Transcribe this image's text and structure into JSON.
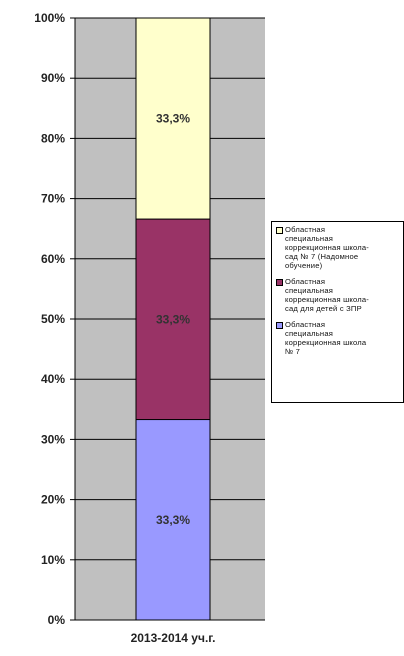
{
  "chart_data": {
    "type": "bar",
    "stacked": true,
    "categories": [
      "2013-2014 уч.г."
    ],
    "series": [
      {
        "name": "Областная специальная коррекционная школа № 7",
        "values": [
          33.3
        ],
        "label": "33,3%",
        "color": "#9999ff"
      },
      {
        "name": "Областная специальная коррекционная школа-сад для детей с ЗПР",
        "values": [
          33.3
        ],
        "label": "33,3%",
        "color": "#993366"
      },
      {
        "name": "Областная специальная коррекционная школа-сад № 7 (Надомное обучение)",
        "values": [
          33.3
        ],
        "label": "33,3%",
        "color": "#ffffcc"
      }
    ],
    "ylim": [
      0,
      100
    ],
    "y_ticks": [
      "0%",
      "10%",
      "20%",
      "30%",
      "40%",
      "50%",
      "60%",
      "70%",
      "80%",
      "90%",
      "100%"
    ],
    "grid": true,
    "legend_position": "right"
  },
  "legend": {
    "items": [
      {
        "text": "Областная\nспециальная\nкоррекционная школа-\nсад  № 7 (Надомное\nобучение)",
        "color": "#ffffcc"
      },
      {
        "text": "Областная\nспециальная\nкоррекционная школа-\nсад для детей с ЗПР",
        "color": "#993366"
      },
      {
        "text": "Областная\nспециальная\nкоррекционная школа\n№ 7",
        "color": "#9999ff"
      }
    ]
  },
  "colors": {
    "plot_background": "#c0c0c0",
    "gridline": "#000000"
  }
}
